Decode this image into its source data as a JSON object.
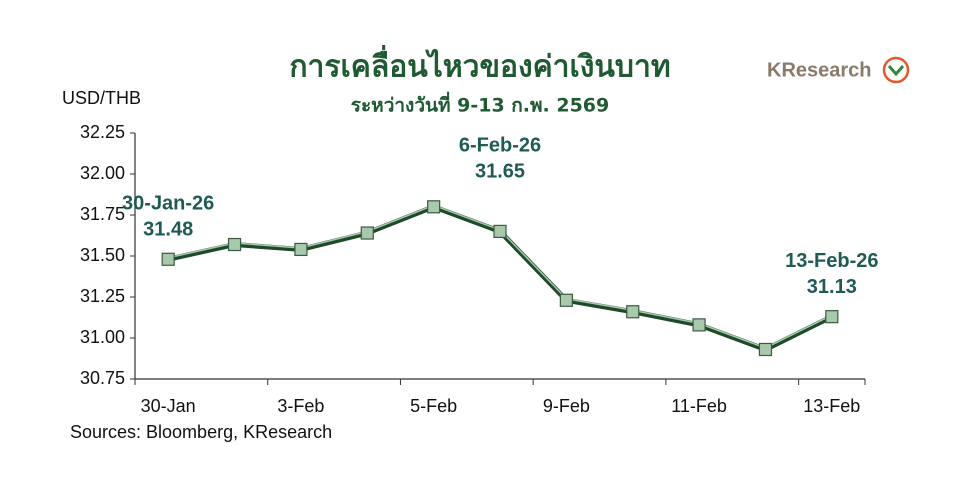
{
  "chart_data": {
    "type": "line",
    "title": "การเคลื่อนไหวของค่าเงินบาท",
    "subtitle": "ระหว่างวันที่ 9-13 ก.พ. 2569",
    "y_label": "USD/THB",
    "source": "Sources: Bloomberg, KResearch",
    "logo": "KResearch",
    "categories": [
      "30-Jan",
      null,
      "3-Feb",
      null,
      "5-Feb",
      null,
      "9-Feb",
      null,
      "11-Feb",
      null,
      "13-Feb"
    ],
    "values": [
      31.48,
      31.57,
      31.54,
      31.64,
      31.8,
      31.65,
      31.23,
      31.16,
      31.08,
      30.93,
      31.13
    ],
    "annotations": [
      "30-Jan-26",
      null,
      null,
      null,
      null,
      "6-Feb-26",
      null,
      null,
      null,
      null,
      "13-Feb-26"
    ],
    "color": "#1e4a2a",
    "marker_color": "#a9c9ad",
    "label_color": "#1f5a55",
    "ylim": [
      30.75,
      32.25
    ],
    "yticks": [
      30.75,
      {
        "value": 31,
        "label": "31.00"
      },
      31.25,
      {
        "value": 31.5,
        "label": "31.50"
      },
      31.75,
      {
        "value": 32,
        "label": "32.00"
      },
      32.25
    ]
  }
}
